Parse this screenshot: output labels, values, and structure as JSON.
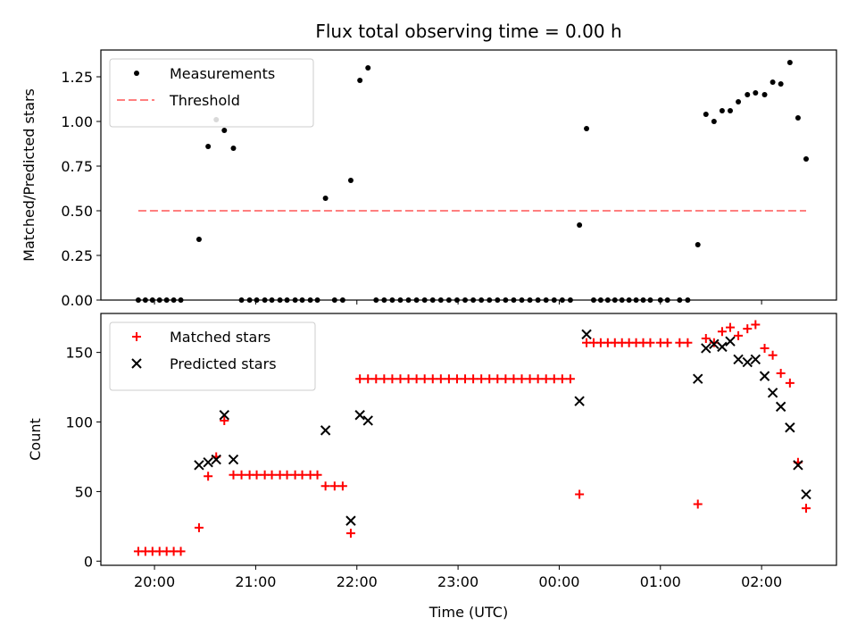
{
  "chart_data": {
    "title": "Flux total observing time = 0.00 h",
    "xlabel": "Time (UTC)",
    "x_units": "hours after 19:00 UTC on the first night",
    "x_ticks": [
      {
        "x": 1,
        "label": "20:00"
      },
      {
        "x": 2,
        "label": "21:00"
      },
      {
        "x": 3,
        "label": "22:00"
      },
      {
        "x": 4,
        "label": "23:00"
      },
      {
        "x": 5,
        "label": "00:00"
      },
      {
        "x": 6,
        "label": "01:00"
      },
      {
        "x": 7,
        "label": "02:00"
      }
    ],
    "panels": [
      {
        "type": "scatter",
        "ylabel": "Matched/Predicted stars",
        "ylim": [
          0,
          1.4
        ],
        "y_ticks": [
          "0.00",
          "0.25",
          "0.50",
          "0.75",
          "1.00",
          "1.25"
        ],
        "legend_position": "upper left",
        "series": [
          {
            "name": "Measurements",
            "marker": "dot",
            "color": "#000000",
            "points": [
              [
                0.84,
                0
              ],
              [
                0.91,
                0
              ],
              [
                0.98,
                0
              ],
              [
                1.05,
                0
              ],
              [
                1.12,
                0
              ],
              [
                1.19,
                0
              ],
              [
                1.26,
                0
              ],
              [
                1.44,
                0.34
              ],
              [
                1.53,
                0.86
              ],
              [
                1.61,
                1.01
              ],
              [
                1.69,
                0.95
              ],
              [
                1.78,
                0.85
              ],
              [
                1.86,
                0
              ],
              [
                1.94,
                0
              ],
              [
                2.01,
                0
              ],
              [
                2.09,
                0
              ],
              [
                2.16,
                0
              ],
              [
                2.24,
                0
              ],
              [
                2.31,
                0
              ],
              [
                2.39,
                0
              ],
              [
                2.46,
                0
              ],
              [
                2.54,
                0
              ],
              [
                2.61,
                0
              ],
              [
                2.69,
                0.57
              ],
              [
                2.78,
                0
              ],
              [
                2.86,
                0
              ],
              [
                2.94,
                0.67
              ],
              [
                3.03,
                1.23
              ],
              [
                3.11,
                1.3
              ],
              [
                3.19,
                0
              ],
              [
                3.27,
                0
              ],
              [
                3.35,
                0
              ],
              [
                3.43,
                0
              ],
              [
                3.51,
                0
              ],
              [
                3.59,
                0
              ],
              [
                3.67,
                0
              ],
              [
                3.75,
                0
              ],
              [
                3.83,
                0
              ],
              [
                3.91,
                0
              ],
              [
                3.99,
                0
              ],
              [
                4.07,
                0
              ],
              [
                4.15,
                0
              ],
              [
                4.23,
                0
              ],
              [
                4.31,
                0
              ],
              [
                4.39,
                0
              ],
              [
                4.47,
                0
              ],
              [
                4.55,
                0
              ],
              [
                4.63,
                0
              ],
              [
                4.71,
                0
              ],
              [
                4.79,
                0
              ],
              [
                4.87,
                0
              ],
              [
                4.95,
                0
              ],
              [
                5.03,
                0
              ],
              [
                5.11,
                0
              ],
              [
                5.2,
                0.42
              ],
              [
                5.27,
                0.96
              ],
              [
                5.34,
                0
              ],
              [
                5.41,
                0
              ],
              [
                5.48,
                0
              ],
              [
                5.55,
                0
              ],
              [
                5.62,
                0
              ],
              [
                5.69,
                0
              ],
              [
                5.76,
                0
              ],
              [
                5.83,
                0
              ],
              [
                5.9,
                0
              ],
              [
                6.0,
                0
              ],
              [
                6.07,
                0
              ],
              [
                6.19,
                0
              ],
              [
                6.27,
                0
              ],
              [
                6.37,
                0.31
              ],
              [
                6.45,
                1.04
              ],
              [
                6.53,
                1.0
              ],
              [
                6.61,
                1.06
              ],
              [
                6.69,
                1.06
              ],
              [
                6.77,
                1.11
              ],
              [
                6.86,
                1.15
              ],
              [
                6.94,
                1.16
              ],
              [
                7.03,
                1.15
              ],
              [
                7.11,
                1.22
              ],
              [
                7.19,
                1.21
              ],
              [
                7.28,
                1.33
              ],
              [
                7.36,
                1.02
              ],
              [
                7.44,
                0.79
              ]
            ]
          },
          {
            "name": "Threshold",
            "marker": "dashed-line",
            "color": "#ff7f7f",
            "points": [
              [
                0.84,
                0.5
              ],
              [
                7.44,
                0.5
              ]
            ]
          }
        ]
      },
      {
        "type": "scatter",
        "ylabel": "Count",
        "ylim": [
          -3,
          178
        ],
        "y_ticks": [
          "0",
          "50",
          "100",
          "150"
        ],
        "legend_position": "upper left",
        "series": [
          {
            "name": "Matched stars",
            "marker": "plus",
            "color": "#ff0000",
            "points": [
              [
                0.84,
                7
              ],
              [
                0.91,
                7
              ],
              [
                0.98,
                7
              ],
              [
                1.05,
                7
              ],
              [
                1.12,
                7
              ],
              [
                1.19,
                7
              ],
              [
                1.26,
                7
              ],
              [
                1.44,
                24
              ],
              [
                1.53,
                61
              ],
              [
                1.61,
                75
              ],
              [
                1.69,
                101
              ],
              [
                1.78,
                62
              ],
              [
                1.86,
                62
              ],
              [
                1.94,
                62
              ],
              [
                2.01,
                62
              ],
              [
                2.09,
                62
              ],
              [
                2.16,
                62
              ],
              [
                2.24,
                62
              ],
              [
                2.31,
                62
              ],
              [
                2.39,
                62
              ],
              [
                2.46,
                62
              ],
              [
                2.54,
                62
              ],
              [
                2.61,
                62
              ],
              [
                2.69,
                54
              ],
              [
                2.78,
                54
              ],
              [
                2.86,
                54
              ],
              [
                2.94,
                20
              ],
              [
                3.03,
                131
              ],
              [
                3.11,
                131
              ],
              [
                3.19,
                131
              ],
              [
                3.27,
                131
              ],
              [
                3.35,
                131
              ],
              [
                3.43,
                131
              ],
              [
                3.51,
                131
              ],
              [
                3.59,
                131
              ],
              [
                3.67,
                131
              ],
              [
                3.75,
                131
              ],
              [
                3.83,
                131
              ],
              [
                3.91,
                131
              ],
              [
                3.99,
                131
              ],
              [
                4.07,
                131
              ],
              [
                4.15,
                131
              ],
              [
                4.23,
                131
              ],
              [
                4.31,
                131
              ],
              [
                4.39,
                131
              ],
              [
                4.47,
                131
              ],
              [
                4.55,
                131
              ],
              [
                4.63,
                131
              ],
              [
                4.71,
                131
              ],
              [
                4.79,
                131
              ],
              [
                4.87,
                131
              ],
              [
                4.95,
                131
              ],
              [
                5.03,
                131
              ],
              [
                5.11,
                131
              ],
              [
                5.2,
                48
              ],
              [
                5.27,
                157
              ],
              [
                5.34,
                157
              ],
              [
                5.41,
                157
              ],
              [
                5.48,
                157
              ],
              [
                5.55,
                157
              ],
              [
                5.62,
                157
              ],
              [
                5.69,
                157
              ],
              [
                5.76,
                157
              ],
              [
                5.83,
                157
              ],
              [
                5.9,
                157
              ],
              [
                6.0,
                157
              ],
              [
                6.07,
                157
              ],
              [
                6.19,
                157
              ],
              [
                6.27,
                157
              ],
              [
                6.37,
                41
              ],
              [
                6.45,
                160
              ],
              [
                6.53,
                157
              ],
              [
                6.61,
                165
              ],
              [
                6.69,
                168
              ],
              [
                6.77,
                162
              ],
              [
                6.86,
                167
              ],
              [
                6.94,
                170
              ],
              [
                7.03,
                153
              ],
              [
                7.11,
                148
              ],
              [
                7.19,
                135
              ],
              [
                7.28,
                128
              ],
              [
                7.36,
                71
              ],
              [
                7.44,
                38
              ]
            ]
          },
          {
            "name": "Predicted stars",
            "marker": "x",
            "color": "#000000",
            "points": [
              [
                1.44,
                69
              ],
              [
                1.53,
                71
              ],
              [
                1.61,
                73
              ],
              [
                1.69,
                105
              ],
              [
                1.78,
                73
              ],
              [
                2.69,
                94
              ],
              [
                2.94,
                29
              ],
              [
                3.03,
                105
              ],
              [
                3.11,
                101
              ],
              [
                5.2,
                115
              ],
              [
                5.27,
                163
              ],
              [
                6.37,
                131
              ],
              [
                6.45,
                153
              ],
              [
                6.53,
                156
              ],
              [
                6.61,
                154
              ],
              [
                6.69,
                158
              ],
              [
                6.77,
                145
              ],
              [
                6.86,
                143
              ],
              [
                6.94,
                145
              ],
              [
                7.03,
                133
              ],
              [
                7.11,
                121
              ],
              [
                7.19,
                111
              ],
              [
                7.28,
                96
              ],
              [
                7.36,
                69
              ],
              [
                7.44,
                48
              ]
            ]
          }
        ]
      }
    ]
  }
}
